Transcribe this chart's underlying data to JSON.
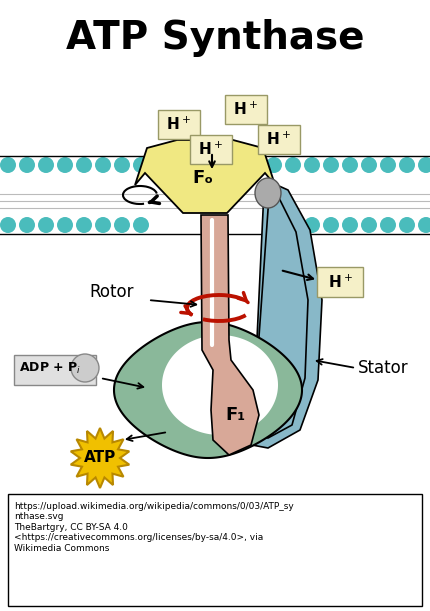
{
  "title": "ATP Synthase",
  "title_fontsize": 28,
  "title_fontweight": "bold",
  "background_color": "#ffffff",
  "membrane_bead_color": "#4abcbc",
  "fo_color": "#f0e882",
  "fo_label": "Fₒ",
  "f1_color": "#8ab89a",
  "f1_label": "F₁",
  "rotor_color": "#d8a898",
  "stator_color": "#88b8c8",
  "stator_label": "Stator",
  "rotor_label": "Rotor",
  "h_plus_box_color": "#f5f0c8",
  "adp_box_color": "#d8d8d8",
  "atp_color": "#f0c000",
  "atp_text": "ATP",
  "citation_text": "https://upload.wikimedia.org/wikipedia/commons/0/03/ATP_sy\nnthase.svg\nTheBartgry, CC BY-SA 4.0\n<https://creativecommons.org/licenses/by-sa/4.0>, via\nWikimedia Commons",
  "arrow_color": "#000000",
  "red_arrow_color": "#bb1100"
}
